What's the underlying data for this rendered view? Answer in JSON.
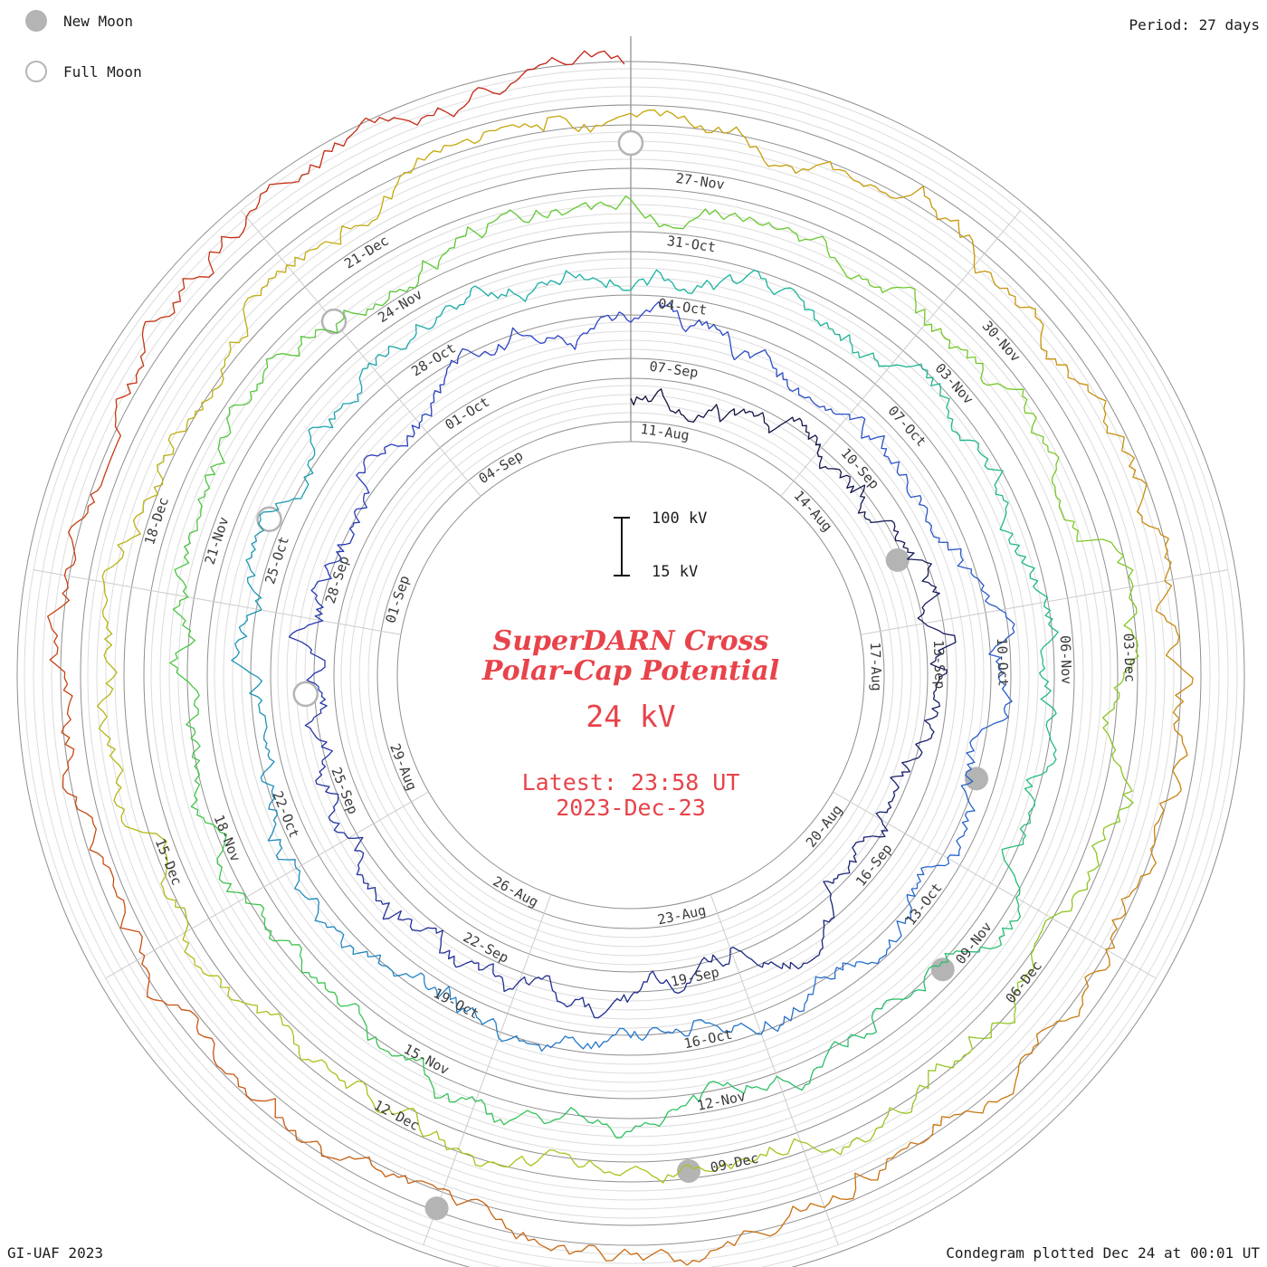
{
  "header": {
    "period_label": "Period: 27 days"
  },
  "legend": {
    "new_moon": "New Moon",
    "full_moon": "Full Moon"
  },
  "footer": {
    "left": "GI-UAF 2023",
    "right": "Condegram plotted Dec 24 at 00:01 UT"
  },
  "center": {
    "title_line1": "SuperDARN Cross",
    "title_line2": "Polar-Cap Potential",
    "current_value": "24 kV",
    "latest_line1": "Latest: 23:58 UT",
    "latest_line2": "2023-Dec-23"
  },
  "scale": {
    "top_label": "100 kV",
    "bottom_label": "15 kV"
  },
  "colors": {
    "accent_text": "#e8434a",
    "moon_gray": "#b4b4b4"
  },
  "chart_data": {
    "type": "condegram-polar-line",
    "title": "SuperDARN Cross Polar-Cap Potential",
    "units": "kV",
    "period_days": 27,
    "label_step_days": 3,
    "start_date": "2023-Aug-11",
    "end_date": "2023-Dec-23",
    "latest_value_kv": 24,
    "latest_time": "23:58 UT 2023-Dec-23",
    "value_scale_kv": [
      15,
      100
    ],
    "total_days": 134.98,
    "start_angle": "top, clockwise",
    "rotations": [
      {
        "labels": [
          "11-Aug",
          "14-Aug",
          "17-Aug",
          "20-Aug",
          "23-Aug",
          "26-Aug",
          "29-Aug",
          "01-Sep",
          "04-Sep"
        ]
      },
      {
        "labels": [
          "07-Sep",
          "10-Sep",
          "13-Sep",
          "16-Sep",
          "19-Sep",
          "22-Sep",
          "25-Sep",
          "28-Sep",
          "01-Oct"
        ]
      },
      {
        "labels": [
          "04-Oct",
          "07-Oct",
          "10-Oct",
          "13-Oct",
          "16-Oct",
          "19-Oct",
          "22-Oct",
          "25-Oct",
          "28-Oct"
        ]
      },
      {
        "labels": [
          "31-Oct",
          "03-Nov",
          "06-Nov",
          "09-Nov",
          "12-Nov",
          "15-Nov",
          "18-Nov",
          "21-Nov",
          "24-Nov"
        ]
      },
      {
        "labels": [
          "27-Nov",
          "30-Nov",
          "03-Dec",
          "06-Dec",
          "09-Dec",
          "12-Dec",
          "15-Dec",
          "18-Dec",
          "21-Dec"
        ]
      }
    ],
    "new_moon_days": [
      5,
      35,
      64,
      94,
      123
    ],
    "full_moon_days": [
      20,
      49,
      78,
      108
    ],
    "colormap": [
      [
        0.0,
        "#121238"
      ],
      [
        0.1,
        "#1d2a8c"
      ],
      [
        0.2,
        "#2e45c8"
      ],
      [
        0.3,
        "#2276cc"
      ],
      [
        0.4,
        "#18b2a2"
      ],
      [
        0.5,
        "#2dc15e"
      ],
      [
        0.6,
        "#63c82d"
      ],
      [
        0.7,
        "#a6c51b"
      ],
      [
        0.8,
        "#c7a40a"
      ],
      [
        0.9,
        "#c86a10"
      ],
      [
        1.0,
        "#c41e12"
      ]
    ]
  }
}
